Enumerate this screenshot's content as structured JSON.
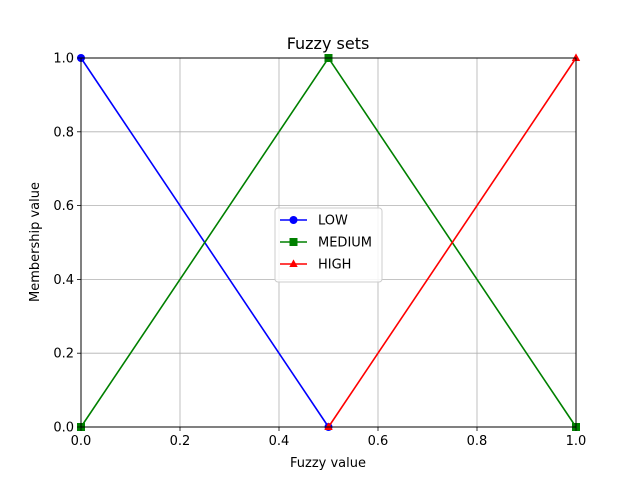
{
  "chart_data": {
    "type": "line",
    "title": "Fuzzy sets",
    "xlabel": "Fuzzy value",
    "ylabel": "Membership value",
    "xlim": [
      0,
      1
    ],
    "ylim": [
      0,
      1
    ],
    "xticks": [
      "0.0",
      "0.2",
      "0.4",
      "0.6",
      "0.8",
      "1.0"
    ],
    "yticks": [
      "0.0",
      "0.2",
      "0.4",
      "0.6",
      "0.8",
      "1.0"
    ],
    "grid": true,
    "legend_position": "center",
    "series": [
      {
        "name": "LOW",
        "color": "#0000ff",
        "marker": "circle",
        "x": [
          0.0,
          0.5
        ],
        "y": [
          1.0,
          0.0
        ]
      },
      {
        "name": "MEDIUM",
        "color": "#008000",
        "marker": "square",
        "x": [
          0.0,
          0.5,
          1.0
        ],
        "y": [
          0.0,
          1.0,
          0.0
        ]
      },
      {
        "name": "HIGH",
        "color": "#ff0000",
        "marker": "triangle",
        "x": [
          0.5,
          1.0
        ],
        "y": [
          0.0,
          1.0
        ]
      }
    ]
  }
}
